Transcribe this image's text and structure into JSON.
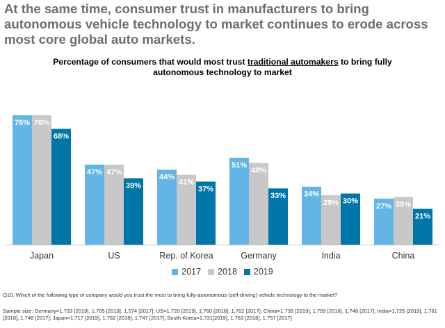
{
  "headline": "At the same time, consumer trust in manufacturers to bring autonomous vehicle technology to market continues to erode across most core global auto markets.",
  "subtitle": {
    "before": "Percentage of consumers that would most trust ",
    "underlined": "traditional automakers",
    "after": " to bring fully autonomous technology to market"
  },
  "question": "Q10. Which of the following type of company would you trust the most to bring fully-autonomous (self-driving) vehicle technology to the market?",
  "sample": "Sample size: Germany=1,733 [2019], 1,705 [2018], 1,574 [2017]; US=1,720 [2019], 1,760 [2018], 1,762 [2017]; China=1,735 [2019], 1,759 [2018], 1,748 [2017]; India=1,725 [2019], 1,761 [2018], 1,748 [2017]; Japan=1,717 [2019], 1,762 [2018], 1,747 [2017]; South Korea=1,731[2019], 1,763 [2018], 1,757 [2017]",
  "colors": {
    "2017": "#62b5e5",
    "2018": "#c8c8c8",
    "2019": "#0076a8",
    "axis": "#bfbfbf"
  },
  "chart_data": {
    "type": "bar",
    "categories": [
      "Japan",
      "US",
      "Rep. of Korea",
      "Germany",
      "India",
      "China"
    ],
    "series": [
      {
        "name": "2017",
        "values": [
          76,
          47,
          44,
          51,
          34,
          27
        ]
      },
      {
        "name": "2018",
        "values": [
          76,
          47,
          41,
          48,
          29,
          28
        ]
      },
      {
        "name": "2019",
        "values": [
          68,
          39,
          37,
          33,
          30,
          21
        ]
      }
    ],
    "value_suffix": "%",
    "ylim": [
      0,
      80
    ],
    "grid": false,
    "legend": "bottom"
  }
}
